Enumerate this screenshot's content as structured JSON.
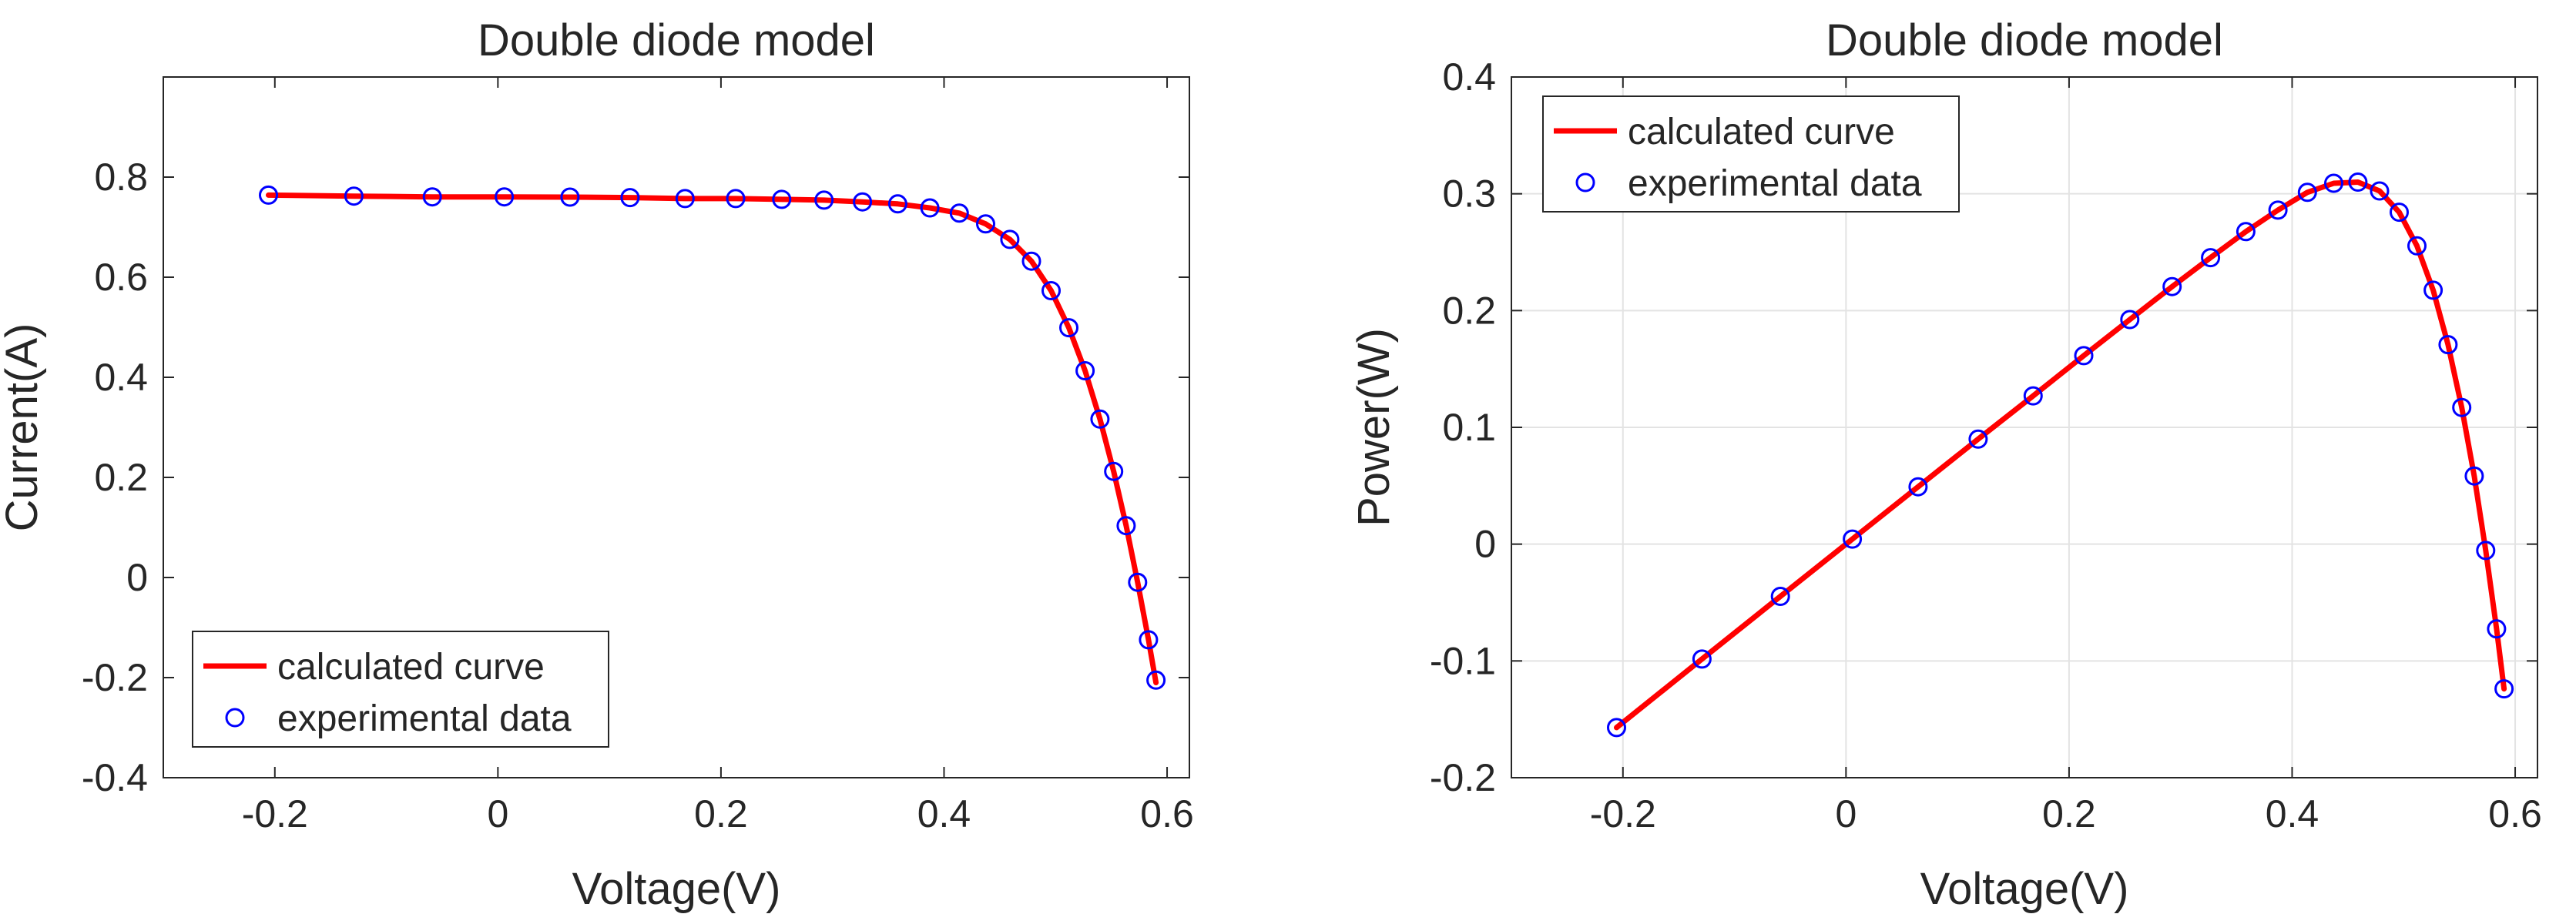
{
  "figure": {
    "styles": {
      "curve_color": "#ff0000",
      "marker_color": "#0000ff",
      "axis_color": "#262626",
      "grid_color": "#e3e3e3",
      "background": "#ffffff"
    }
  },
  "chart_data": [
    {
      "type": "line",
      "title": "Double diode model",
      "xlabel": "Voltage(V)",
      "ylabel": "Current(A)",
      "xlim": [
        -0.3,
        0.62
      ],
      "ylim": [
        -0.4,
        1.0
      ],
      "xticks": [
        -0.2,
        0,
        0.2,
        0.4,
        0.6
      ],
      "xtick_labels": [
        "-0.2",
        "0",
        "0.2",
        "0.4",
        "0.6"
      ],
      "yticks": [
        -0.4,
        -0.2,
        0,
        0.2,
        0.4,
        0.6,
        0.8
      ],
      "ytick_labels": [
        "-0.4",
        "-0.2",
        "0",
        "0.2",
        "0.4",
        "0.6",
        "0.8"
      ],
      "grid": false,
      "legend": {
        "location": "bottom-left",
        "entries": [
          "calculated curve",
          "experimental data"
        ]
      },
      "series": [
        {
          "name": "calculated curve",
          "style": "line",
          "x": [
            -0.2057,
            -0.1291,
            -0.0588,
            0.0057,
            0.0646,
            0.1185,
            0.1678,
            0.2132,
            0.2545,
            0.2924,
            0.3269,
            0.3585,
            0.3873,
            0.4137,
            0.4373,
            0.459,
            0.4784,
            0.496,
            0.5119,
            0.5265,
            0.5398,
            0.5521,
            0.5633,
            0.5736,
            0.5833,
            0.59
          ],
          "y": [
            0.764,
            0.762,
            0.7605,
            0.7605,
            0.76,
            0.759,
            0.757,
            0.757,
            0.7555,
            0.754,
            0.7505,
            0.7465,
            0.7385,
            0.728,
            0.7065,
            0.6755,
            0.632,
            0.573,
            0.499,
            0.413,
            0.3165,
            0.212,
            0.1035,
            -0.0095,
            -0.1245,
            -0.21
          ]
        },
        {
          "name": "experimental data",
          "style": "markers",
          "x": [
            -0.2057,
            -0.1291,
            -0.0588,
            0.0057,
            0.0646,
            0.1185,
            0.1678,
            0.2132,
            0.2545,
            0.2924,
            0.3269,
            0.3585,
            0.3873,
            0.4137,
            0.4373,
            0.459,
            0.4784,
            0.496,
            0.5119,
            0.5265,
            0.5398,
            0.5521,
            0.5633,
            0.5736,
            0.5833,
            0.59
          ],
          "y": [
            0.764,
            0.762,
            0.7605,
            0.7605,
            0.76,
            0.759,
            0.757,
            0.757,
            0.7555,
            0.754,
            0.7505,
            0.7465,
            0.7385,
            0.728,
            0.7065,
            0.6755,
            0.632,
            0.573,
            0.499,
            0.413,
            0.3165,
            0.212,
            0.1035,
            -0.0095,
            -0.1245,
            -0.205
          ]
        }
      ]
    },
    {
      "type": "line",
      "title": "Double diode model",
      "xlabel": "Voltage(V)",
      "ylabel": "Power(W)",
      "xlim": [
        -0.3,
        0.62
      ],
      "ylim": [
        -0.2,
        0.4
      ],
      "xticks": [
        -0.2,
        0,
        0.2,
        0.4,
        0.6
      ],
      "xtick_labels": [
        "-0.2",
        "0",
        "0.2",
        "0.4",
        "0.6"
      ],
      "yticks": [
        -0.2,
        -0.1,
        0,
        0.1,
        0.2,
        0.3,
        0.4
      ],
      "ytick_labels": [
        "-0.2",
        "-0.1",
        "0",
        "0.1",
        "0.2",
        "0.3",
        "0.4"
      ],
      "grid": true,
      "legend": {
        "location": "top-left",
        "entries": [
          "calculated curve",
          "experimental data"
        ]
      },
      "series": [
        {
          "name": "calculated curve",
          "style": "line",
          "x": [
            -0.2057,
            -0.1291,
            -0.0588,
            0.0057,
            0.0646,
            0.1185,
            0.1678,
            0.2132,
            0.2545,
            0.2924,
            0.3269,
            0.3585,
            0.3873,
            0.4137,
            0.4373,
            0.459,
            0.4784,
            0.496,
            0.5119,
            0.5265,
            0.5398,
            0.5521,
            0.5633,
            0.5736,
            0.5833,
            0.59
          ],
          "y": [
            -0.1571,
            -0.0984,
            -0.0447,
            0.0043,
            0.0491,
            0.0899,
            0.127,
            0.1614,
            0.1923,
            0.2205,
            0.2453,
            0.2676,
            0.286,
            0.3012,
            0.309,
            0.31,
            0.3024,
            0.2842,
            0.2554,
            0.2174,
            0.1708,
            0.117,
            0.0583,
            -0.0054,
            -0.0726,
            -0.1239
          ]
        },
        {
          "name": "experimental data",
          "style": "markers",
          "x": [
            -0.2057,
            -0.1291,
            -0.0588,
            0.0057,
            0.0646,
            0.1185,
            0.1678,
            0.2132,
            0.2545,
            0.2924,
            0.3269,
            0.3585,
            0.3873,
            0.4137,
            0.4373,
            0.459,
            0.4784,
            0.496,
            0.5119,
            0.5265,
            0.5398,
            0.5521,
            0.5633,
            0.5736,
            0.5833,
            0.59
          ],
          "y": [
            -0.1571,
            -0.0984,
            -0.0447,
            0.0043,
            0.0491,
            0.0899,
            0.127,
            0.1614,
            0.1923,
            0.2205,
            0.2453,
            0.2676,
            0.286,
            0.3012,
            0.309,
            0.31,
            0.3024,
            0.2842,
            0.2554,
            0.2174,
            0.1708,
            0.117,
            0.0583,
            -0.0054,
            -0.0726,
            -0.1239
          ]
        }
      ]
    }
  ]
}
